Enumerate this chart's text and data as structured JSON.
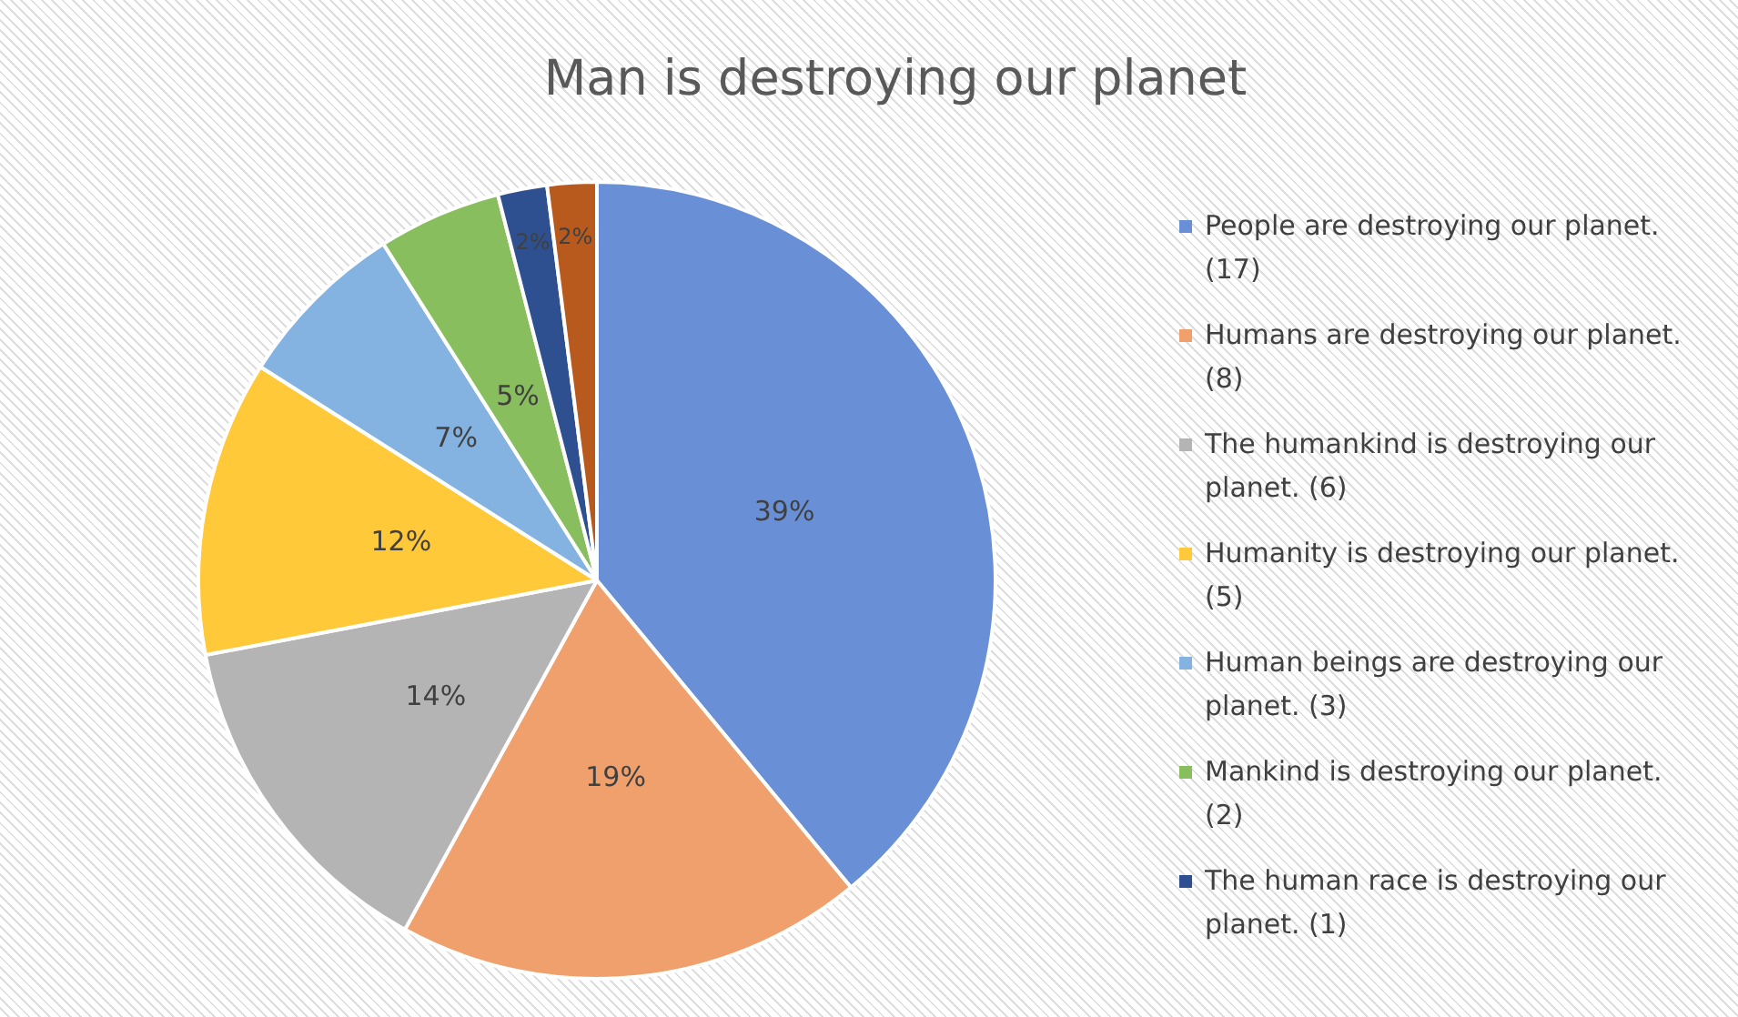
{
  "chart_data": {
    "type": "pie",
    "title": "Man is destroying our planet",
    "categories": [
      "People are destroying our planet. (17)",
      "Humans are destroying our planet. (8)",
      "The humankind is destroying our planet. (6)",
      "Humanity is destroying our planet. (5)",
      "Human beings are destroying our planet. (3)",
      "Mankind is destroying our planet. (2)",
      "The human race is destroying our planet. (1)",
      null
    ],
    "values": [
      39,
      19,
      14,
      12,
      7,
      5,
      2,
      2
    ],
    "value_labels": [
      "39%",
      "19%",
      "14%",
      "12%",
      "7%",
      "5%",
      "2%",
      "2%"
    ],
    "colors": [
      "#6990d6",
      "#f0a06c",
      "#b4b4b4",
      "#ffc93a",
      "#84b3e2",
      "#88be5e",
      "#2e5090",
      "#b85a1e"
    ],
    "legend": "right"
  }
}
